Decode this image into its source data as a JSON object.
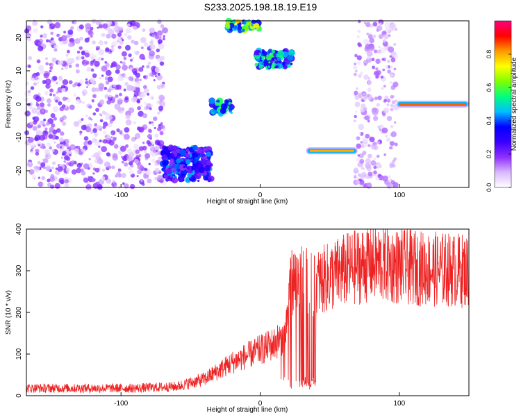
{
  "figure": {
    "title": "S233.2025.198.18.19.E19"
  },
  "chart_data": [
    {
      "type": "heatmap",
      "xlabel": "Height of straight line (km)",
      "ylabel": "Frequency (Hz)",
      "xlim": [
        -168,
        150
      ],
      "ylim": [
        -25,
        25
      ],
      "xticks": [
        -100,
        0,
        100
      ],
      "yticks": [
        -20,
        -10,
        0,
        10,
        20
      ],
      "colorbar": {
        "label": "Normalized spectral amplitude",
        "range": [
          0,
          1
        ],
        "ticks": [
          0,
          0.2,
          0.4,
          0.6,
          0.8
        ],
        "tick_labels": [
          "0.0",
          "0.2",
          "0.4",
          "0.6",
          "0.8"
        ],
        "colormap": [
          "#ffffff",
          "#d9b8ff",
          "#8f2fff",
          "#3a00ff",
          "#0000ff",
          "#00bfff",
          "#00ff7f",
          "#7fff00",
          "#ffff00",
          "#ff9900",
          "#ff0000",
          "#ff0080"
        ]
      },
      "features": [
        {
          "x": [
            -168,
            -68
          ],
          "f": [
            -25,
            25
          ],
          "amp": 0.2,
          "kind": "noise"
        },
        {
          "x": [
            -70,
            -35
          ],
          "f": [
            -23,
            -13
          ],
          "amp": 0.35,
          "kind": "patch"
        },
        {
          "x": [
            -35,
            -20
          ],
          "f": [
            -3,
            1
          ],
          "amp": 0.45,
          "kind": "patch"
        },
        {
          "x": [
            -24,
            0
          ],
          "f": [
            22,
            25
          ],
          "amp": 0.6,
          "kind": "patch"
        },
        {
          "x": [
            -3,
            23
          ],
          "f": [
            11,
            16
          ],
          "amp": 0.45,
          "kind": "patch"
        },
        {
          "x": [
            33,
            70
          ],
          "f": [
            -15,
            -13
          ],
          "amp": 0.8,
          "kind": "line"
        },
        {
          "x": [
            68,
            98
          ],
          "f": [
            -25,
            25
          ],
          "amp": 0.15,
          "kind": "noise"
        },
        {
          "x": [
            98,
            150
          ],
          "f": [
            -1,
            1
          ],
          "amp": 0.85,
          "kind": "line"
        }
      ]
    },
    {
      "type": "line",
      "xlabel": "Height of straight line (km)",
      "ylabel": "SNR (10 * v/v)",
      "xlim": [
        -168,
        150
      ],
      "ylim": [
        0,
        400
      ],
      "xticks": [
        -100,
        0,
        100
      ],
      "yticks": [
        0,
        100,
        200,
        300,
        400
      ],
      "series": [
        {
          "color": "#ee2222",
          "trend_x": [
            -168,
            -90,
            -60,
            -40,
            -20,
            0,
            10,
            18,
            22,
            28,
            40,
            60,
            80,
            100,
            120,
            150
          ],
          "trend_y": [
            18,
            18,
            22,
            40,
            80,
            110,
            125,
            145,
            275,
            280,
            270,
            300,
            320,
            310,
            305,
            300
          ]
        }
      ]
    }
  ]
}
